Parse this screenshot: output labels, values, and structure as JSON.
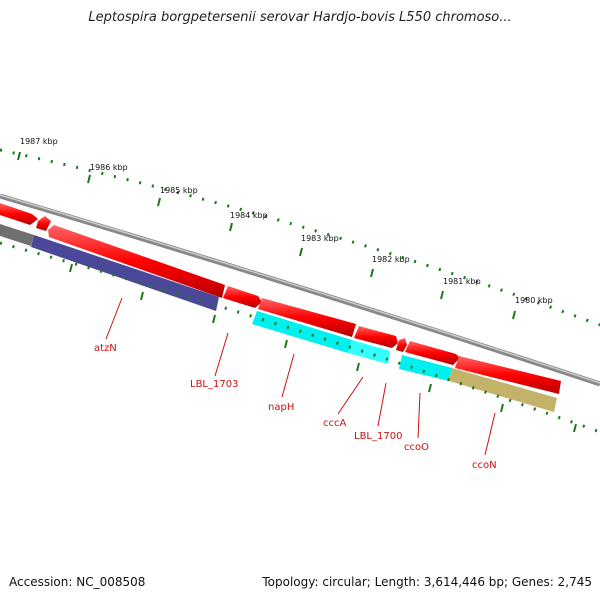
{
  "title": "Leptospira borgpetersenii serovar Hardjo-bovis L550 chromoso...",
  "footer": {
    "accession": "Accession: NC_008508",
    "summary": "Topology: circular; Length: 3,614,446 bp; Genes: 2,745"
  },
  "scale_labels": [
    "1987 kbp",
    "1986 kbp",
    "1985 kbp",
    "1984 kbp",
    "1983 kbp",
    "1982 kbp",
    "1981 kbp",
    "1980 kbp"
  ],
  "gene_labels": [
    "atzN",
    "LBL_1703",
    "napH",
    "cccA",
    "LBL_1700",
    "ccoO",
    "ccoN"
  ],
  "colors": {
    "forward_gene": "#ff0000",
    "backbone": "#808080",
    "atzN": "#4b4899",
    "LBL_1703": "#00ffff",
    "napH": "#00ffff",
    "ccoO": "#00ffff",
    "ccoN": "#c2b26a",
    "tick": "#1a7a1a",
    "label": "#cc1111"
  }
}
